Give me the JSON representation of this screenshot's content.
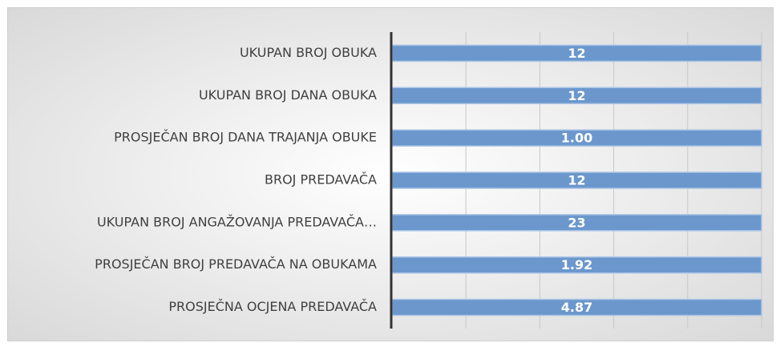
{
  "chart_data": {
    "type": "bar",
    "orientation": "horizontal",
    "normalize_percent": true,
    "categories": [
      "UKUPAN BROJ OBUKA",
      "UKUPAN BROJ DANA OBUKA",
      "PROSJEČAN BROJ DANA TRAJANJA OBUKE",
      "BROJ PREDAVAČA",
      "UKUPAN BROJ ANGAŽOVANJA PREDAVAČA…",
      "PROSJEČAN BROJ PREDAVAČA NA OBUKAMA",
      "PROSJEČNA OCJENA PREDAVAČA"
    ],
    "values": [
      12,
      12,
      1.0,
      12,
      23,
      1.92,
      4.87
    ],
    "value_labels": [
      "12",
      "12",
      "1.00",
      "12",
      "23",
      "1.92",
      "4.87"
    ],
    "color": "#6b97cc",
    "xlim": [
      0,
      100
    ],
    "xticks": [
      0,
      20,
      40,
      60,
      80,
      100
    ],
    "show_tick_labels": false,
    "grid": true
  }
}
